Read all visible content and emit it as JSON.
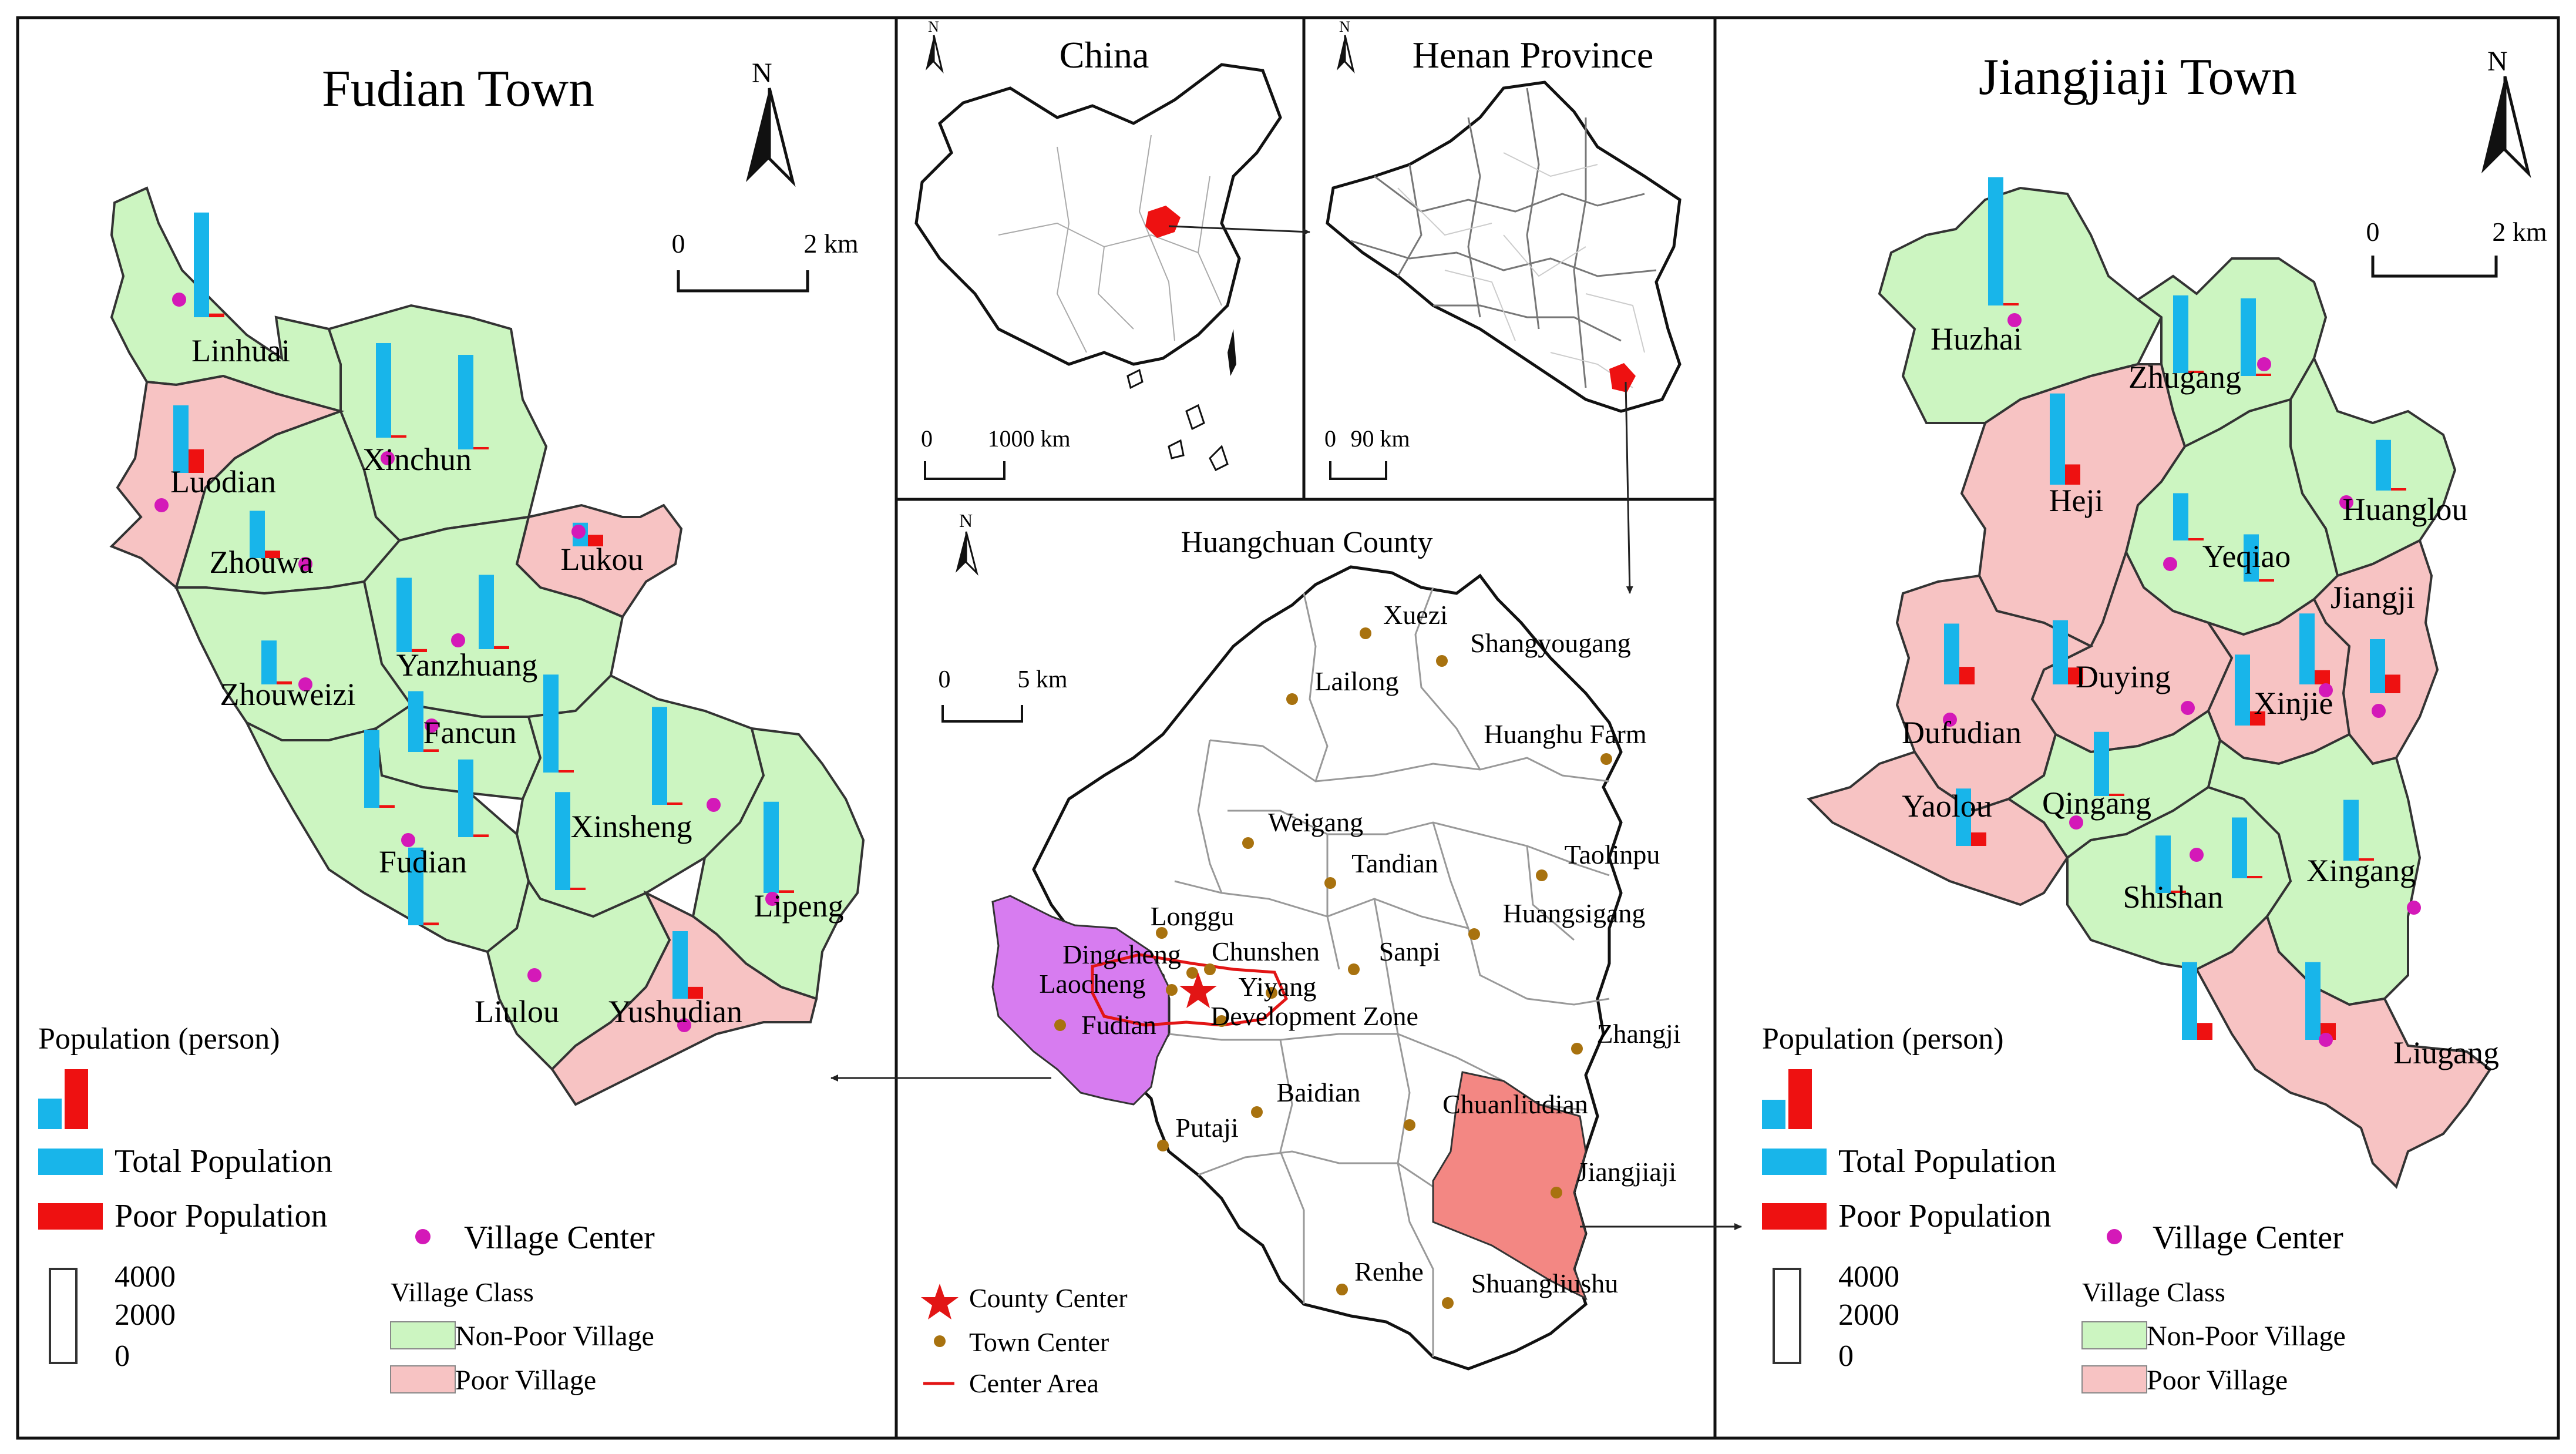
{
  "left_panel": {
    "title": "Fudian Town",
    "scale": {
      "zero": "0",
      "end": "2 km"
    },
    "villages": [
      {
        "name": "Linhuai",
        "class": "nonpoor",
        "total": 3100,
        "poor": 110
      },
      {
        "name": "Xinchun",
        "class": "nonpoor",
        "total": 2800,
        "poor": 70
      },
      {
        "name": "Luodian",
        "class": "poor",
        "total": 2000,
        "poor": 700
      },
      {
        "name": "Zhouwa",
        "class": "nonpoor",
        "total": 1400,
        "poor": 220
      },
      {
        "name": "Lukou",
        "class": "poor",
        "total": 700,
        "poor": 340
      },
      {
        "name": "Yanzhuang",
        "class": "nonpoor",
        "total": 2200,
        "poor": 90
      },
      {
        "name": "Zhouweizi",
        "class": "nonpoor",
        "total": 1300,
        "poor": 90
      },
      {
        "name": "Fancun",
        "class": "nonpoor",
        "total": 1800,
        "poor": 80
      },
      {
        "name": "Xinsheng",
        "class": "nonpoor",
        "total": 2900,
        "poor": 70
      },
      {
        "name": "Fudian",
        "class": "nonpoor",
        "total": 2300,
        "poor": 80
      },
      {
        "name": "Lipeng",
        "class": "nonpoor",
        "total": 2700,
        "poor": 80
      },
      {
        "name": "Liulou",
        "class": "nonpoor",
        "total": 1900,
        "poor": 60
      },
      {
        "name": "Yushudian",
        "class": "poor",
        "total": 2000,
        "poor": 350
      }
    ],
    "legend": {
      "population_title": "Population (person)",
      "total": "Total Population",
      "poor": "Poor Population",
      "center": "Village Center",
      "scale_vals": [
        "4000",
        "2000",
        "0"
      ],
      "class_title": "Village Class",
      "nonpoor": "Non-Poor Village",
      "poorv": "Poor Village"
    }
  },
  "right_panel": {
    "title": "Jiangjiaji Town",
    "scale": {
      "zero": "0",
      "end": "2 km"
    },
    "villages": [
      {
        "name": "Huzhai",
        "class": "nonpoor",
        "total": 3800,
        "poor": 70
      },
      {
        "name": "Zhugang",
        "class": "nonpoor",
        "total": 2300,
        "poor": 60
      },
      {
        "name": "Heji",
        "class": "poor",
        "total": 2700,
        "poor": 600
      },
      {
        "name": "Huanglou",
        "class": "nonpoor",
        "total": 1500,
        "poor": 50
      },
      {
        "name": "Yeqiao",
        "class": "nonpoor",
        "total": 1400,
        "poor": 60
      },
      {
        "name": "Jiangji",
        "class": "poor",
        "total": 1600,
        "poor": 550
      },
      {
        "name": "Duying",
        "class": "poor",
        "total": 1900,
        "poor": 500
      },
      {
        "name": "Xinjie",
        "class": "poor",
        "total": 2100,
        "poor": 420
      },
      {
        "name": "Dufudian",
        "class": "poor",
        "total": 1800,
        "poor": 520
      },
      {
        "name": "Qingang",
        "class": "nonpoor",
        "total": 1900,
        "poor": 60
      },
      {
        "name": "Yaolou",
        "class": "poor",
        "total": 1700,
        "poor": 400
      },
      {
        "name": "Shishan",
        "class": "nonpoor",
        "total": 1700,
        "poor": 50
      },
      {
        "name": "Xingang",
        "class": "nonpoor",
        "total": 1800,
        "poor": 60
      },
      {
        "name": "Liugang",
        "class": "poor",
        "total": 2300,
        "poor": 500
      }
    ],
    "legend": {
      "population_title": "Population (person)",
      "total": "Total Population",
      "poor": "Poor Population",
      "center": "Village Center",
      "scale_vals": [
        "4000",
        "2000",
        "0"
      ],
      "class_title": "Village Class",
      "nonpoor": "Non-Poor Village",
      "poorv": "Poor Village"
    }
  },
  "china_inset": {
    "title": "China",
    "scale": {
      "zero": "0",
      "end": "1000 km"
    }
  },
  "henan_inset": {
    "title": "Henan Province",
    "scale": {
      "zero": "0",
      "end": "90 km"
    }
  },
  "county_map": {
    "title": "Huangchuan County",
    "scale": {
      "zero": "0",
      "end": "5 km"
    },
    "towns": [
      "Xuezi",
      "Shangyougang",
      "Lailong",
      "Huanghu Farm",
      "Weigang",
      "Tandian",
      "Taolinpu",
      "Huangsigang",
      "Longgu",
      "Dingcheng",
      "Chunshen",
      "Laocheng",
      "Yiyang",
      "Sanpi",
      "Fudian",
      "Development Zone",
      "Zhangji",
      "Baidian",
      "Chuanliudian",
      "Putaji",
      "Jiangjiaji",
      "Renhe",
      "Shuangliushu"
    ],
    "legend": {
      "county_center": "County Center",
      "town_center": "Town Center",
      "center_area": "Center Area"
    }
  },
  "colors": {
    "nonpoor": "#ccf5c1",
    "poor": "#f7c3c3",
    "total": "#18b5ea",
    "poorpop": "#ee1111",
    "center": "#d419b8",
    "town": "#a8720f",
    "fudian": "#d77cf0",
    "jiangjiaji": "#f38783",
    "star": "#e21515"
  }
}
